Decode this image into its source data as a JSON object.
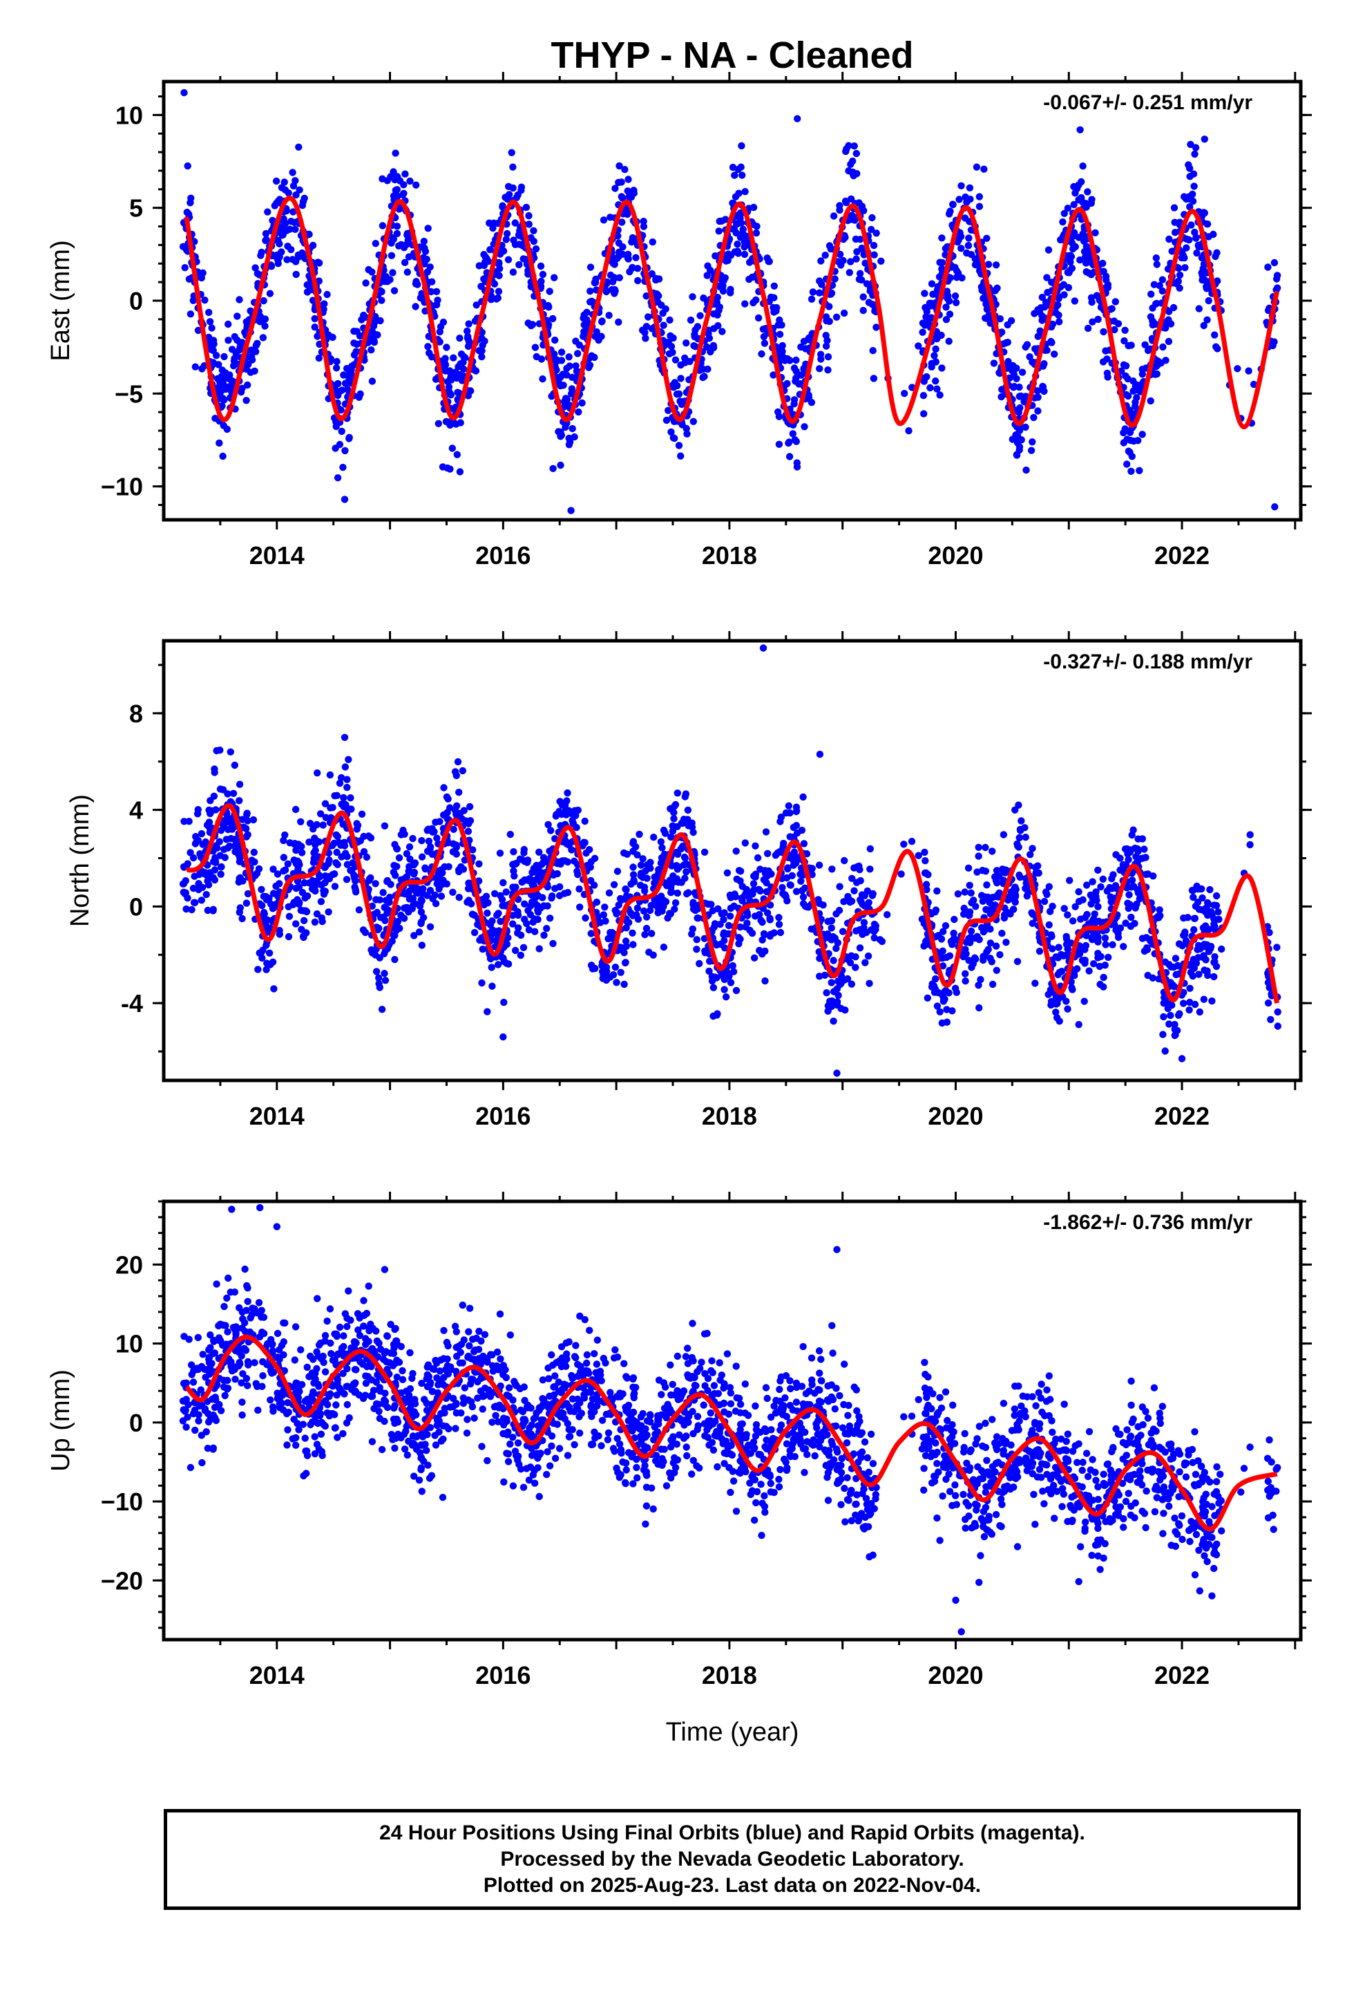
{
  "title": "THYP  - NA - Cleaned",
  "xlabel": "Time (year)",
  "footer": {
    "line1": "24 Hour Positions Using Final Orbits (blue) and Rapid Orbits (magenta).",
    "line2": "Processed by the Nevada Geodetic Laboratory.",
    "line3": "Plotted on 2025-Aug-23. Last data on 2022-Nov-04."
  },
  "colors": {
    "points": "#0000ff",
    "fit": "#ff0000",
    "frame": "#000000"
  },
  "chart_data": [
    {
      "type": "scatter",
      "component": "East",
      "ylabel": "East (mm)",
      "rate_text": "-0.067+/- 0.251 mm/yr",
      "xlim": [
        2013.0,
        2023.05
      ],
      "ylim": [
        -11.8,
        11.8
      ],
      "xticks": [
        2014,
        2016,
        2018,
        2020,
        2022
      ],
      "xtick_labels": [
        "2014",
        "2016",
        "2018",
        "2020",
        "2022"
      ],
      "yticks": [
        10,
        5,
        0,
        -5,
        -10
      ],
      "ytick_labels": [
        "10",
        "5",
        "0",
        "−5",
        "−10"
      ],
      "fit": {
        "rate": -0.067,
        "x": [
          2013.2,
          2013.5,
          2013.75,
          2014.08,
          2014.3,
          2014.55,
          2014.8,
          2015.07,
          2015.3,
          2015.55,
          2015.8,
          2016.08,
          2016.3,
          2016.55,
          2016.8,
          2017.08,
          2017.3,
          2017.55,
          2017.8,
          2018.08,
          2018.3,
          2018.55,
          2018.8,
          2019.08,
          2019.3,
          2019.5,
          2019.8,
          2020.08,
          2020.3,
          2020.55,
          2020.8,
          2021.08,
          2021.3,
          2021.55,
          2021.8,
          2022.08,
          2022.3,
          2022.55,
          2022.84
        ],
        "y": [
          4.5,
          -6.2,
          -2.0,
          5.4,
          2.0,
          -6.3,
          -1.5,
          5.3,
          1.0,
          -6.3,
          -1.0,
          5.3,
          0.5,
          -6.4,
          -1.0,
          5.3,
          0.5,
          -6.4,
          -1.0,
          5.2,
          0.3,
          -6.5,
          -1.0,
          5.1,
          0.3,
          -6.6,
          -1.5,
          5.0,
          0.3,
          -6.6,
          -1.5,
          4.9,
          0.3,
          -6.7,
          -1.5,
          4.8,
          0.2,
          -6.8,
          0.5
        ]
      },
      "points": {
        "phase": 0.333,
        "amplitude": 5.8,
        "scatter": 1.5,
        "n": 2600,
        "gaps": [
          [
            2019.3,
            2019.7
          ],
          [
            2022.35,
            2022.75
          ]
        ],
        "outliers": [
          [
            2013.18,
            11.2
          ],
          [
            2018.6,
            9.8
          ],
          [
            2021.1,
            9.2
          ],
          [
            2022.2,
            8.7
          ],
          [
            2016.6,
            -11.3
          ],
          [
            2022.82,
            -11.1
          ],
          [
            2014.6,
            -10.7
          ]
        ]
      }
    },
    {
      "type": "scatter",
      "component": "North",
      "ylabel": "North (mm)",
      "rate_text": "-0.327+/- 0.188 mm/yr",
      "xlim": [
        2013.0,
        2023.05
      ],
      "ylim": [
        -7.2,
        11.0
      ],
      "xticks": [
        2014,
        2016,
        2018,
        2020,
        2022
      ],
      "xtick_labels": [
        "2014",
        "2016",
        "2018",
        "2020",
        "2022"
      ],
      "yticks": [
        8,
        4,
        0,
        -4
      ],
      "ytick_labels": [
        "8",
        "4",
        "0",
        "-4"
      ],
      "fit": {
        "rate": -0.327,
        "x": [
          2013.2,
          2013.35,
          2013.6,
          2013.9,
          2014.1,
          2014.35,
          2014.6,
          2014.9,
          2015.1,
          2015.35,
          2015.6,
          2015.9,
          2016.1,
          2016.35,
          2016.6,
          2016.9,
          2017.1,
          2017.35,
          2017.6,
          2017.9,
          2018.1,
          2018.35,
          2018.6,
          2018.9,
          2019.1,
          2019.35,
          2019.6,
          2019.9,
          2020.1,
          2020.35,
          2020.6,
          2020.9,
          2021.1,
          2021.35,
          2021.6,
          2021.9,
          2022.1,
          2022.35,
          2022.6,
          2022.84
        ],
        "y": [
          1.5,
          1.8,
          4.1,
          -1.3,
          1.0,
          1.5,
          3.8,
          -1.6,
          0.8,
          1.2,
          3.5,
          -1.9,
          0.4,
          0.9,
          3.2,
          -2.2,
          0.1,
          0.6,
          2.9,
          -2.5,
          -0.2,
          0.3,
          2.6,
          -2.8,
          -0.5,
          0.0,
          2.2,
          -3.2,
          -0.8,
          -0.4,
          1.9,
          -3.5,
          -1.1,
          -0.7,
          1.6,
          -3.8,
          -1.4,
          -1.0,
          1.2,
          -4.0
        ]
      },
      "points": {
        "phase": 0.45,
        "amplitude": 2.8,
        "scatter": 1.2,
        "n": 2600,
        "gaps": [
          [
            2019.3,
            2019.7
          ],
          [
            2022.35,
            2022.75
          ]
        ],
        "outliers": [
          [
            2018.3,
            10.7
          ],
          [
            2014.6,
            7.0
          ],
          [
            2018.8,
            6.3
          ],
          [
            2018.95,
            -6.9
          ],
          [
            2022.0,
            -6.3
          ],
          [
            2016.0,
            -5.4
          ]
        ]
      }
    },
    {
      "type": "scatter",
      "component": "Up",
      "ylabel": "Up (mm)",
      "rate_text": "-1.862+/- 0.736 mm/yr",
      "xlim": [
        2013.0,
        2023.05
      ],
      "ylim": [
        -27.5,
        28.0
      ],
      "xticks": [
        2014,
        2016,
        2018,
        2020,
        2022
      ],
      "xtick_labels": [
        "2014",
        "2016",
        "2018",
        "2020",
        "2022"
      ],
      "yticks": [
        20,
        10,
        0,
        -10,
        -20
      ],
      "ytick_labels": [
        "20",
        "10",
        "0",
        "−10",
        "−20"
      ],
      "fit": {
        "rate": -1.862,
        "x": [
          2013.2,
          2013.35,
          2013.55,
          2013.75,
          2014.0,
          2014.25,
          2014.5,
          2014.75,
          2015.0,
          2015.25,
          2015.5,
          2015.75,
          2016.0,
          2016.25,
          2016.5,
          2016.75,
          2017.0,
          2017.25,
          2017.5,
          2017.75,
          2018.0,
          2018.25,
          2018.5,
          2018.75,
          2019.0,
          2019.25,
          2019.5,
          2019.75,
          2020.0,
          2020.25,
          2020.5,
          2020.75,
          2021.0,
          2021.25,
          2021.5,
          2021.75,
          2022.0,
          2022.25,
          2022.5,
          2022.84
        ],
        "y": [
          4.5,
          3.0,
          8.5,
          10.8,
          7.0,
          1.0,
          6.0,
          9.0,
          5.0,
          -0.8,
          4.0,
          7.0,
          3.0,
          -2.6,
          2.5,
          5.3,
          1.0,
          -4.3,
          0.5,
          3.5,
          -1.0,
          -6.1,
          -1.0,
          1.6,
          -3.0,
          -7.9,
          -2.5,
          -0.2,
          -5.0,
          -9.8,
          -4.5,
          -2.1,
          -7.0,
          -11.6,
          -6.0,
          -3.9,
          -8.5,
          -13.5,
          -8.0,
          -6.5
        ]
      },
      "points": {
        "phase": 0.72,
        "amplitude": 5.0,
        "scatter": 3.8,
        "n": 2600,
        "gaps": [
          [
            2019.3,
            2019.7
          ],
          [
            2022.35,
            2022.75
          ]
        ],
        "outliers": [
          [
            2013.6,
            27.0
          ],
          [
            2013.85,
            27.2
          ],
          [
            2014.0,
            24.8
          ],
          [
            2018.95,
            21.9
          ],
          [
            2020.05,
            -26.5
          ],
          [
            2020.0,
            -22.5
          ]
        ]
      }
    }
  ]
}
